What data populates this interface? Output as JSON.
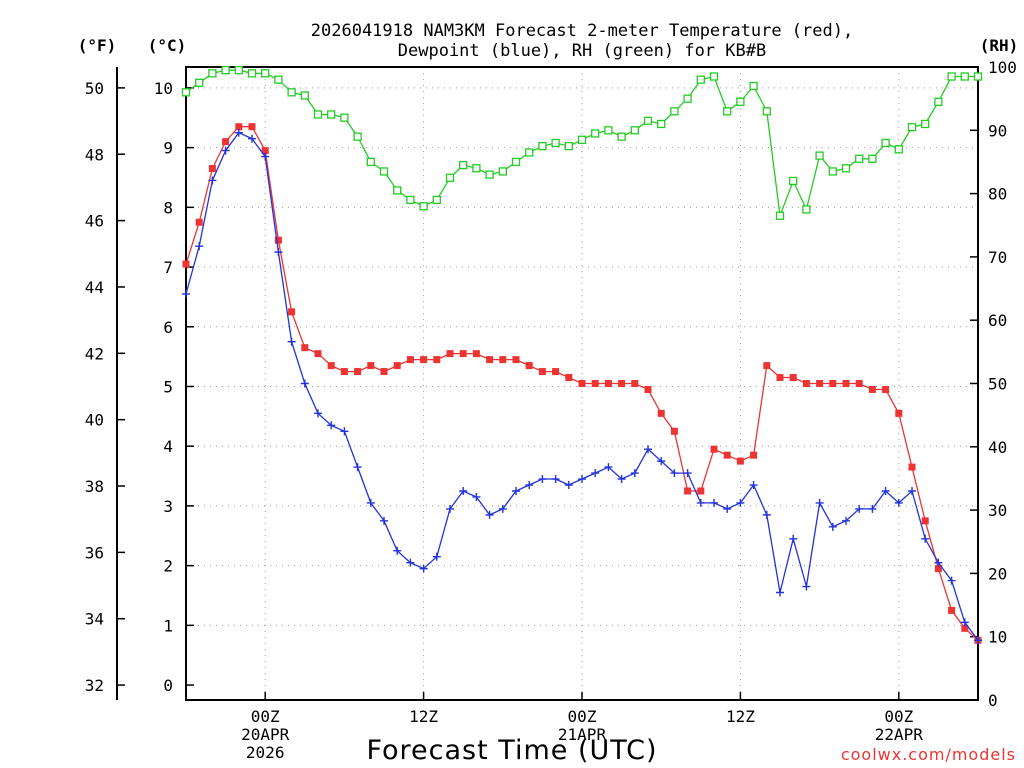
{
  "chart_data": {
    "type": "line",
    "title_line1": "2026041918 NAM3KM Forecast 2-meter Temperature (red),",
    "title_line2": "Dewpoint (blue), RH (green) for KB#B",
    "xlabel": "Forecast Time (UTC)",
    "credit": "coolwx.com/models",
    "axis_labels": {
      "left_outer": "(°F)",
      "left_inner": "(°C)",
      "right": "(RH)"
    },
    "x_range_hours": [
      0,
      60
    ],
    "x_ticks": [
      {
        "hour": 6,
        "lines": [
          "00Z",
          "20APR",
          "2026"
        ]
      },
      {
        "hour": 18,
        "lines": [
          "12Z"
        ]
      },
      {
        "hour": 30,
        "lines": [
          "00Z",
          "21APR"
        ]
      },
      {
        "hour": 42,
        "lines": [
          "12Z"
        ]
      },
      {
        "hour": 54,
        "lines": [
          "00Z",
          "22APR"
        ]
      }
    ],
    "y_celsius": {
      "min": -0.25,
      "max": 10.35,
      "ticks": [
        0,
        1,
        2,
        3,
        4,
        5,
        6,
        7,
        8,
        9,
        10
      ]
    },
    "y_fahrenheit_ticks": [
      32,
      34,
      36,
      38,
      40,
      42,
      44,
      46,
      48,
      50
    ],
    "y_rh": {
      "min": 0,
      "max": 100,
      "ticks": [
        0,
        10,
        20,
        30,
        40,
        50,
        60,
        70,
        80,
        90,
        100
      ]
    },
    "series": [
      {
        "name": "Temperature",
        "unit": "°C",
        "color": "#ee3333",
        "marker": "filled-square",
        "hours": [
          0,
          1,
          2,
          3,
          4,
          5,
          6,
          7,
          8,
          9,
          10,
          11,
          12,
          13,
          14,
          15,
          16,
          17,
          18,
          19,
          20,
          21,
          22,
          23,
          24,
          25,
          26,
          27,
          28,
          29,
          30,
          31,
          32,
          33,
          34,
          35,
          36,
          37,
          38,
          39,
          40,
          41,
          42,
          43,
          44,
          45,
          46,
          47,
          48,
          49,
          50,
          51,
          52,
          53,
          54,
          55,
          56,
          57,
          58,
          59,
          60
        ],
        "values": [
          7.05,
          7.75,
          8.65,
          9.1,
          9.35,
          9.35,
          8.95,
          7.45,
          6.25,
          5.65,
          5.55,
          5.35,
          5.25,
          5.25,
          5.35,
          5.25,
          5.35,
          5.45,
          5.45,
          5.45,
          5.55,
          5.55,
          5.55,
          5.45,
          5.45,
          5.45,
          5.35,
          5.25,
          5.25,
          5.15,
          5.05,
          5.05,
          5.05,
          5.05,
          5.05,
          4.95,
          4.55,
          4.25,
          3.25,
          3.25,
          3.95,
          3.85,
          3.75,
          3.85,
          5.35,
          5.15,
          5.15,
          5.05,
          5.05,
          5.05,
          5.05,
          5.05,
          4.95,
          4.95,
          4.55,
          3.65,
          2.75,
          1.95,
          1.25,
          0.95,
          0.75
        ]
      },
      {
        "name": "Dewpoint",
        "unit": "°C",
        "color": "#2233dd",
        "marker": "plus",
        "hours": [
          0,
          1,
          2,
          3,
          4,
          5,
          6,
          7,
          8,
          9,
          10,
          11,
          12,
          13,
          14,
          15,
          16,
          17,
          18,
          19,
          20,
          21,
          22,
          23,
          24,
          25,
          26,
          27,
          28,
          29,
          30,
          31,
          32,
          33,
          34,
          35,
          36,
          37,
          38,
          39,
          40,
          41,
          42,
          43,
          44,
          45,
          46,
          47,
          48,
          49,
          50,
          51,
          52,
          53,
          54,
          55,
          56,
          57,
          58,
          59,
          60
        ],
        "values": [
          6.55,
          7.35,
          8.45,
          8.95,
          9.25,
          9.15,
          8.85,
          7.25,
          5.75,
          5.05,
          4.55,
          4.35,
          4.25,
          3.65,
          3.05,
          2.75,
          2.25,
          2.05,
          1.95,
          2.15,
          2.95,
          3.25,
          3.15,
          2.85,
          2.95,
          3.25,
          3.35,
          3.45,
          3.45,
          3.35,
          3.45,
          3.55,
          3.65,
          3.45,
          3.55,
          3.95,
          3.75,
          3.55,
          3.55,
          3.05,
          3.05,
          2.95,
          3.05,
          3.35,
          2.85,
          1.55,
          2.45,
          1.65,
          3.05,
          2.65,
          2.75,
          2.95,
          2.95,
          3.25,
          3.05,
          3.25,
          2.45,
          2.05,
          1.75,
          1.05,
          0.75
        ]
      },
      {
        "name": "RH",
        "unit": "%",
        "color": "#22cc22",
        "marker": "open-square",
        "hours": [
          0,
          1,
          2,
          3,
          4,
          5,
          6,
          7,
          8,
          9,
          10,
          11,
          12,
          13,
          14,
          15,
          16,
          17,
          18,
          19,
          20,
          21,
          22,
          23,
          24,
          25,
          26,
          27,
          28,
          29,
          30,
          31,
          32,
          33,
          34,
          35,
          36,
          37,
          38,
          39,
          40,
          41,
          42,
          43,
          44,
          45,
          46,
          47,
          48,
          49,
          50,
          51,
          52,
          53,
          54,
          55,
          56,
          57,
          58,
          59,
          60
        ],
        "values": [
          96,
          97.5,
          99,
          99.5,
          99.5,
          99,
          99,
          98,
          96,
          95.5,
          92.5,
          92.5,
          92,
          89,
          85,
          83.5,
          80.5,
          79,
          78,
          79,
          82.5,
          84.5,
          84,
          83,
          83.5,
          85,
          86.5,
          87.5,
          88,
          87.5,
          88.5,
          89.5,
          90,
          89,
          90,
          91.5,
          91,
          93,
          95,
          98,
          98.5,
          93,
          94.5,
          97,
          93,
          76.5,
          82,
          77.5,
          86,
          83.5,
          84,
          85.5,
          85.5,
          88,
          87,
          90.5,
          91,
          94.5,
          98.5,
          98.5,
          98.5
        ]
      }
    ]
  }
}
